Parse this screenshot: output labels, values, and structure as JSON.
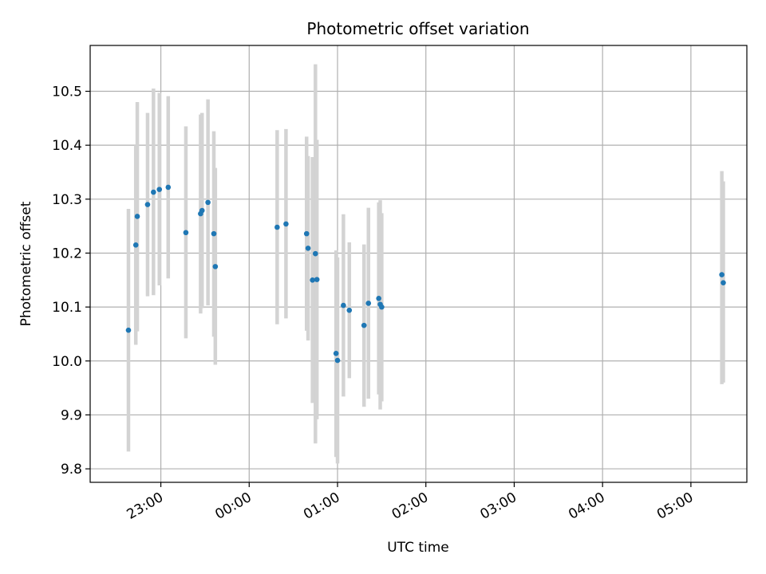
{
  "chart_data": {
    "type": "scatter",
    "title": "Photometric offset variation",
    "xlabel": "UTC time",
    "ylabel": "Photometric offset",
    "grid": true,
    "x_axis": {
      "kind": "time",
      "range": [
        "22:12",
        "05:38"
      ],
      "ticks": [
        "23:00",
        "00:00",
        "01:00",
        "02:00",
        "03:00",
        "04:00",
        "05:00"
      ]
    },
    "y_axis": {
      "range": [
        9.775,
        10.585
      ],
      "ticks": [
        9.8,
        9.9,
        10.0,
        10.1,
        10.2,
        10.3,
        10.4,
        10.5
      ],
      "tick_labels": [
        "9.8",
        "9.9",
        "10.0",
        "10.1",
        "10.2",
        "10.3",
        "10.4",
        "10.5"
      ]
    },
    "colors": {
      "marker": "#1f77b4",
      "errorbar": "#d3d3d3",
      "grid": "#b0b0b0"
    },
    "points": [
      {
        "t": "22:38",
        "y": 10.057,
        "lo": 9.832,
        "hi": 10.282
      },
      {
        "t": "22:43",
        "y": 10.215,
        "lo": 10.03,
        "hi": 10.4
      },
      {
        "t": "22:44",
        "y": 10.268,
        "lo": 10.055,
        "hi": 10.48
      },
      {
        "t": "22:51",
        "y": 10.29,
        "lo": 10.12,
        "hi": 10.46
      },
      {
        "t": "22:55",
        "y": 10.313,
        "lo": 10.122,
        "hi": 10.505
      },
      {
        "t": "22:59",
        "y": 10.318,
        "lo": 10.14,
        "hi": 10.497
      },
      {
        "t": "23:05",
        "y": 10.322,
        "lo": 10.153,
        "hi": 10.491
      },
      {
        "t": "23:17",
        "y": 10.238,
        "lo": 10.042,
        "hi": 10.435
      },
      {
        "t": "23:27",
        "y": 10.273,
        "lo": 10.088,
        "hi": 10.457
      },
      {
        "t": "23:28",
        "y": 10.279,
        "lo": 10.098,
        "hi": 10.46
      },
      {
        "t": "23:32",
        "y": 10.294,
        "lo": 10.103,
        "hi": 10.485
      },
      {
        "t": "23:36",
        "y": 10.236,
        "lo": 10.045,
        "hi": 10.426
      },
      {
        "t": "23:37",
        "y": 10.175,
        "lo": 9.993,
        "hi": 10.358
      },
      {
        "t": "00:19",
        "y": 10.248,
        "lo": 10.068,
        "hi": 10.428
      },
      {
        "t": "00:25",
        "y": 10.254,
        "lo": 10.079,
        "hi": 10.43
      },
      {
        "t": "00:39",
        "y": 10.236,
        "lo": 10.056,
        "hi": 10.416
      },
      {
        "t": "00:40",
        "y": 10.209,
        "lo": 10.038,
        "hi": 10.38
      },
      {
        "t": "00:43",
        "y": 10.15,
        "lo": 9.922,
        "hi": 10.378
      },
      {
        "t": "00:45",
        "y": 10.199,
        "lo": 9.847,
        "hi": 10.55
      },
      {
        "t": "00:46",
        "y": 10.151,
        "lo": 9.892,
        "hi": 10.41
      },
      {
        "t": "00:59",
        "y": 10.014,
        "lo": 9.822,
        "hi": 10.205
      },
      {
        "t": "01:00",
        "y": 10.001,
        "lo": 9.81,
        "hi": 10.192
      },
      {
        "t": "01:04",
        "y": 10.103,
        "lo": 9.934,
        "hi": 10.272
      },
      {
        "t": "01:08",
        "y": 10.094,
        "lo": 9.968,
        "hi": 10.22
      },
      {
        "t": "01:18",
        "y": 10.066,
        "lo": 9.915,
        "hi": 10.216
      },
      {
        "t": "01:21",
        "y": 10.107,
        "lo": 9.93,
        "hi": 10.284
      },
      {
        "t": "01:28",
        "y": 10.116,
        "lo": 9.938,
        "hi": 10.294
      },
      {
        "t": "01:29",
        "y": 10.105,
        "lo": 9.91,
        "hi": 10.298
      },
      {
        "t": "01:30",
        "y": 10.1,
        "lo": 9.925,
        "hi": 10.274
      },
      {
        "t": "05:21",
        "y": 10.16,
        "lo": 9.957,
        "hi": 10.352
      },
      {
        "t": "05:22",
        "y": 10.145,
        "lo": 9.96,
        "hi": 10.333
      }
    ]
  }
}
